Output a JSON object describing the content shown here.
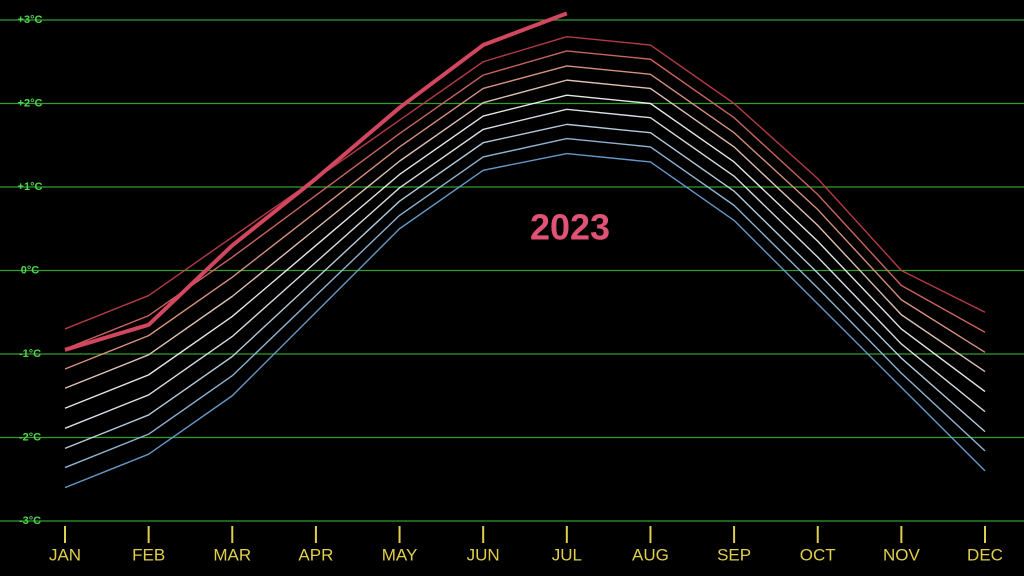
{
  "chart_data": {
    "type": "line",
    "categories": [
      "JAN",
      "FEB",
      "MAR",
      "APR",
      "MAY",
      "JUN",
      "JUL",
      "AUG",
      "SEP",
      "OCT",
      "NOV",
      "DEC"
    ],
    "ylim": [
      -3,
      3
    ],
    "yticks": [
      {
        "value": 3,
        "label": "+3°C"
      },
      {
        "value": 2,
        "label": "+2°C"
      },
      {
        "value": 1,
        "label": "+1°C"
      },
      {
        "value": 0,
        "label": "0°C"
      },
      {
        "value": -1,
        "label": "-1°C"
      },
      {
        "value": -2,
        "label": "-2°C"
      },
      {
        "value": -3,
        "label": "-3°C"
      }
    ],
    "grid": true,
    "series": [
      {
        "color": "#6fa8dc",
        "values": [
          -2.6,
          -2.2,
          -1.5,
          -0.5,
          0.5,
          1.2,
          1.4,
          1.3,
          0.6,
          -0.4,
          -1.4,
          -2.4
        ]
      },
      {
        "color": "#9ec5e8",
        "values": [
          -2.36,
          -1.96,
          -1.26,
          -0.3,
          0.66,
          1.36,
          1.58,
          1.48,
          0.78,
          -0.21,
          -1.23,
          -2.16
        ]
      },
      {
        "color": "#c9e0f2",
        "values": [
          -2.13,
          -1.73,
          -1.03,
          -0.1,
          0.83,
          1.53,
          1.75,
          1.65,
          0.95,
          -0.03,
          -1.05,
          -1.93
        ]
      },
      {
        "color": "#eef4f8",
        "values": [
          -1.89,
          -1.49,
          -0.79,
          0.1,
          0.99,
          1.69,
          1.93,
          1.83,
          1.13,
          0.16,
          -0.88,
          -1.69
        ]
      },
      {
        "color": "#ffffff",
        "values": [
          -1.65,
          -1.25,
          -0.55,
          0.3,
          1.15,
          1.85,
          2.1,
          2.0,
          1.3,
          0.35,
          -0.7,
          -1.45
        ]
      },
      {
        "color": "#f6d5c8",
        "values": [
          -1.41,
          -1.01,
          -0.31,
          0.5,
          1.31,
          2.01,
          2.28,
          2.18,
          1.48,
          0.54,
          -0.53,
          -1.21
        ]
      },
      {
        "color": "#eea08c",
        "values": [
          -1.18,
          -0.78,
          -0.08,
          0.7,
          1.48,
          2.18,
          2.45,
          2.35,
          1.65,
          0.73,
          -0.35,
          -0.98
        ]
      },
      {
        "color": "#df6f6a",
        "values": [
          -0.94,
          -0.54,
          0.16,
          0.9,
          1.64,
          2.34,
          2.63,
          2.53,
          1.83,
          0.91,
          -0.18,
          -0.74
        ]
      },
      {
        "color": "#c8404f",
        "values": [
          -0.7,
          -0.3,
          0.4,
          1.1,
          1.8,
          2.5,
          2.8,
          2.7,
          2.0,
          1.1,
          0.0,
          -0.5
        ]
      },
      {
        "name": "2023",
        "color": "#d2475f",
        "values": [
          -0.95,
          -0.65,
          0.3,
          1.1,
          1.95,
          2.7,
          3.08,
          null,
          null,
          null,
          null,
          null
        ]
      }
    ]
  }
}
